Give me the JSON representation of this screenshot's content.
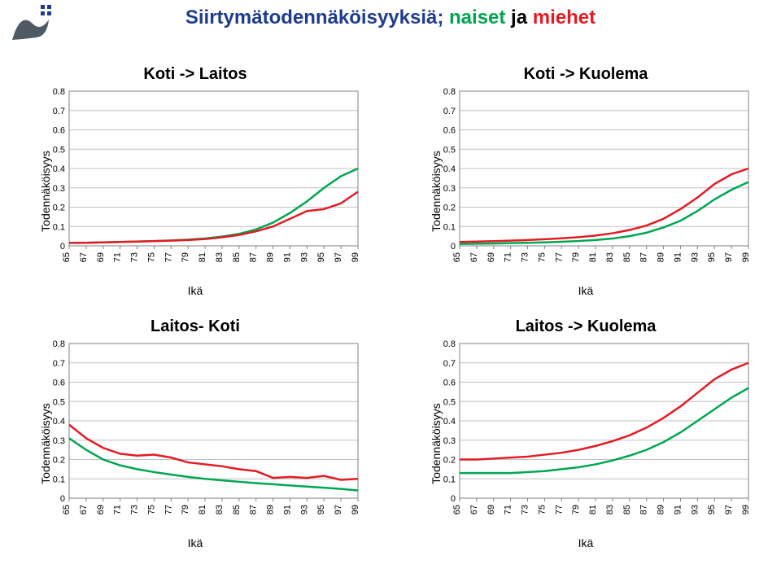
{
  "title": {
    "part1": "Siirtymätodennäköisyyksiä; ",
    "part2": "naiset",
    "sep": " ja ",
    "part3": "miehet",
    "color1": "#1f3c8c",
    "color2": "#00a651",
    "color3": "#e31b23"
  },
  "logo": {
    "shape_fill": "#505a64",
    "squares_fill": "#1f3c8c"
  },
  "axis": {
    "ylabel": "Todennäköisyys",
    "xlabel": "Ikä",
    "yticks": [
      0,
      0.1,
      0.2,
      0.3,
      0.4,
      0.5,
      0.6,
      0.7,
      0.8
    ],
    "xticks": [
      65,
      67,
      69,
      71,
      73,
      75,
      77,
      79,
      81,
      83,
      85,
      87,
      89,
      91,
      93,
      95,
      97,
      99
    ],
    "ylim": [
      0,
      0.8
    ],
    "xlim": [
      65,
      99
    ]
  },
  "colors": {
    "naiset": "#00a651",
    "miehet": "#e31b23",
    "grid": "#c0c0c0",
    "axis": "#808080",
    "background": "#ffffff"
  },
  "charts": [
    {
      "id": "koti-laitos",
      "title": "Koti -> Laitos",
      "title_fontsize": 20,
      "series": {
        "naiset": [
          0.015,
          0.016,
          0.018,
          0.02,
          0.022,
          0.025,
          0.028,
          0.032,
          0.038,
          0.048,
          0.062,
          0.085,
          0.12,
          0.17,
          0.23,
          0.3,
          0.36,
          0.4
        ],
        "miehet": [
          0.015,
          0.016,
          0.018,
          0.02,
          0.022,
          0.024,
          0.027,
          0.03,
          0.035,
          0.044,
          0.056,
          0.075,
          0.1,
          0.14,
          0.18,
          0.19,
          0.22,
          0.28
        ]
      }
    },
    {
      "id": "koti-kuolema",
      "title": "Koti -> Kuolema",
      "title_fontsize": 20,
      "series": {
        "naiset": [
          0.01,
          0.011,
          0.012,
          0.014,
          0.016,
          0.018,
          0.021,
          0.025,
          0.03,
          0.038,
          0.05,
          0.068,
          0.095,
          0.13,
          0.18,
          0.24,
          0.29,
          0.33
        ],
        "miehet": [
          0.02,
          0.022,
          0.024,
          0.027,
          0.03,
          0.034,
          0.039,
          0.045,
          0.053,
          0.065,
          0.082,
          0.105,
          0.14,
          0.19,
          0.25,
          0.32,
          0.37,
          0.4
        ]
      }
    },
    {
      "id": "laitos-koti",
      "title": "Laitos- Koti",
      "title_fontsize": 20,
      "series": {
        "naiset": [
          0.31,
          0.25,
          0.2,
          0.17,
          0.15,
          0.135,
          0.122,
          0.11,
          0.1,
          0.092,
          0.085,
          0.078,
          0.072,
          0.066,
          0.06,
          0.054,
          0.048,
          0.04
        ],
        "miehet": [
          0.38,
          0.31,
          0.26,
          0.23,
          0.22,
          0.225,
          0.21,
          0.185,
          0.175,
          0.165,
          0.15,
          0.14,
          0.105,
          0.11,
          0.105,
          0.115,
          0.095,
          0.1
        ]
      }
    },
    {
      "id": "laitos-kuolema",
      "title": "Laitos -> Kuolema",
      "title_fontsize": 20,
      "series": {
        "naiset": [
          0.13,
          0.13,
          0.13,
          0.13,
          0.135,
          0.14,
          0.15,
          0.16,
          0.175,
          0.195,
          0.22,
          0.25,
          0.29,
          0.34,
          0.4,
          0.46,
          0.52,
          0.57
        ],
        "miehet": [
          0.2,
          0.2,
          0.205,
          0.21,
          0.215,
          0.225,
          0.235,
          0.25,
          0.27,
          0.295,
          0.325,
          0.365,
          0.415,
          0.475,
          0.545,
          0.615,
          0.665,
          0.7
        ]
      }
    }
  ]
}
